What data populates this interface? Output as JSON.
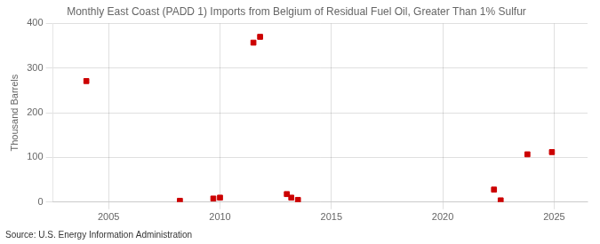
{
  "chart_data": {
    "type": "scatter",
    "title": "Monthly East Coast (PADD 1) Imports from Belgium of Residual Fuel Oil, Greater Than 1% Sulfur",
    "ylabel": "Thousand Barrels",
    "annotations": [
      "Source: U.S. Energy Information Administration"
    ],
    "x": [
      2004.0,
      2008.2,
      2009.7,
      2010.0,
      2011.5,
      2011.8,
      2013.0,
      2013.2,
      2013.5,
      2022.3,
      2022.6,
      2023.8,
      2024.9
    ],
    "values": [
      271,
      3,
      8,
      10,
      357,
      370,
      18,
      10,
      5,
      28,
      4,
      107,
      112
    ],
    "color": "#cc0000",
    "marker": "square",
    "xlim": [
      2002.5,
      2026.5
    ],
    "ylim": [
      0,
      400
    ],
    "xticks": [
      2005,
      2010,
      2015,
      2020,
      2025
    ],
    "yticks": [
      0,
      100,
      200,
      300,
      400
    ],
    "grid": true
  }
}
